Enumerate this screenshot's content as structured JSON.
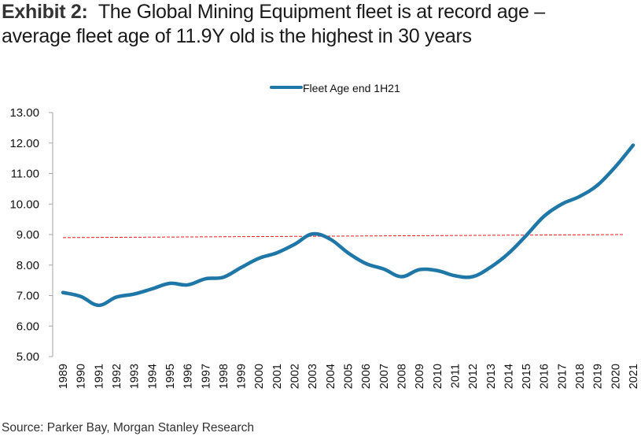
{
  "title": {
    "exhibit_label": "Exhibit 2:",
    "line1": "The Global Mining Equipment fleet is at record age –",
    "line2": "average fleet age of 11.9Y old is the highest in 30 years"
  },
  "source": "Source: Parker Bay, Morgan Stanley Research",
  "colors": {
    "series": "#1f77a8",
    "trend": "#e41a1c",
    "axis": "#a6a6a6"
  },
  "chart_data": {
    "type": "line",
    "title": "The Global Mining Equipment fleet is at record age – average fleet age of 11.9Y old is the highest in 30 years",
    "xlabel": "",
    "ylabel": "",
    "ylim": [
      5,
      13
    ],
    "yticks": [
      "5.00",
      "6.00",
      "7.00",
      "8.00",
      "9.00",
      "10.00",
      "11.00",
      "12.00",
      "13.00"
    ],
    "grid": false,
    "legend_position": "top-center",
    "x": [
      "1989",
      "1990",
      "1991",
      "1992",
      "1993",
      "1994",
      "1995",
      "1996",
      "1997",
      "1998",
      "1999",
      "2000",
      "2001",
      "2002",
      "2003",
      "2004",
      "2005",
      "2006",
      "2007",
      "2008",
      "2009",
      "2010",
      "2011",
      "2012",
      "2013",
      "2014",
      "2015",
      "2016",
      "2017",
      "2018",
      "2019",
      "2020",
      "2021"
    ],
    "series": [
      {
        "name": "Fleet Age end 1H21",
        "style": "solid-smooth",
        "values": [
          7.1,
          6.97,
          6.68,
          6.95,
          7.05,
          7.22,
          7.4,
          7.35,
          7.55,
          7.6,
          7.92,
          8.22,
          8.4,
          8.68,
          9.02,
          8.85,
          8.4,
          8.05,
          7.87,
          7.62,
          7.85,
          7.82,
          7.65,
          7.62,
          7.93,
          8.38,
          8.97,
          9.6,
          10.0,
          10.25,
          10.62,
          11.22,
          11.93
        ]
      },
      {
        "name": "Average trend",
        "style": "dashed",
        "in_legend": false,
        "values_endpoints": {
          "1989": 8.9,
          "2021": 9.0
        }
      }
    ]
  }
}
